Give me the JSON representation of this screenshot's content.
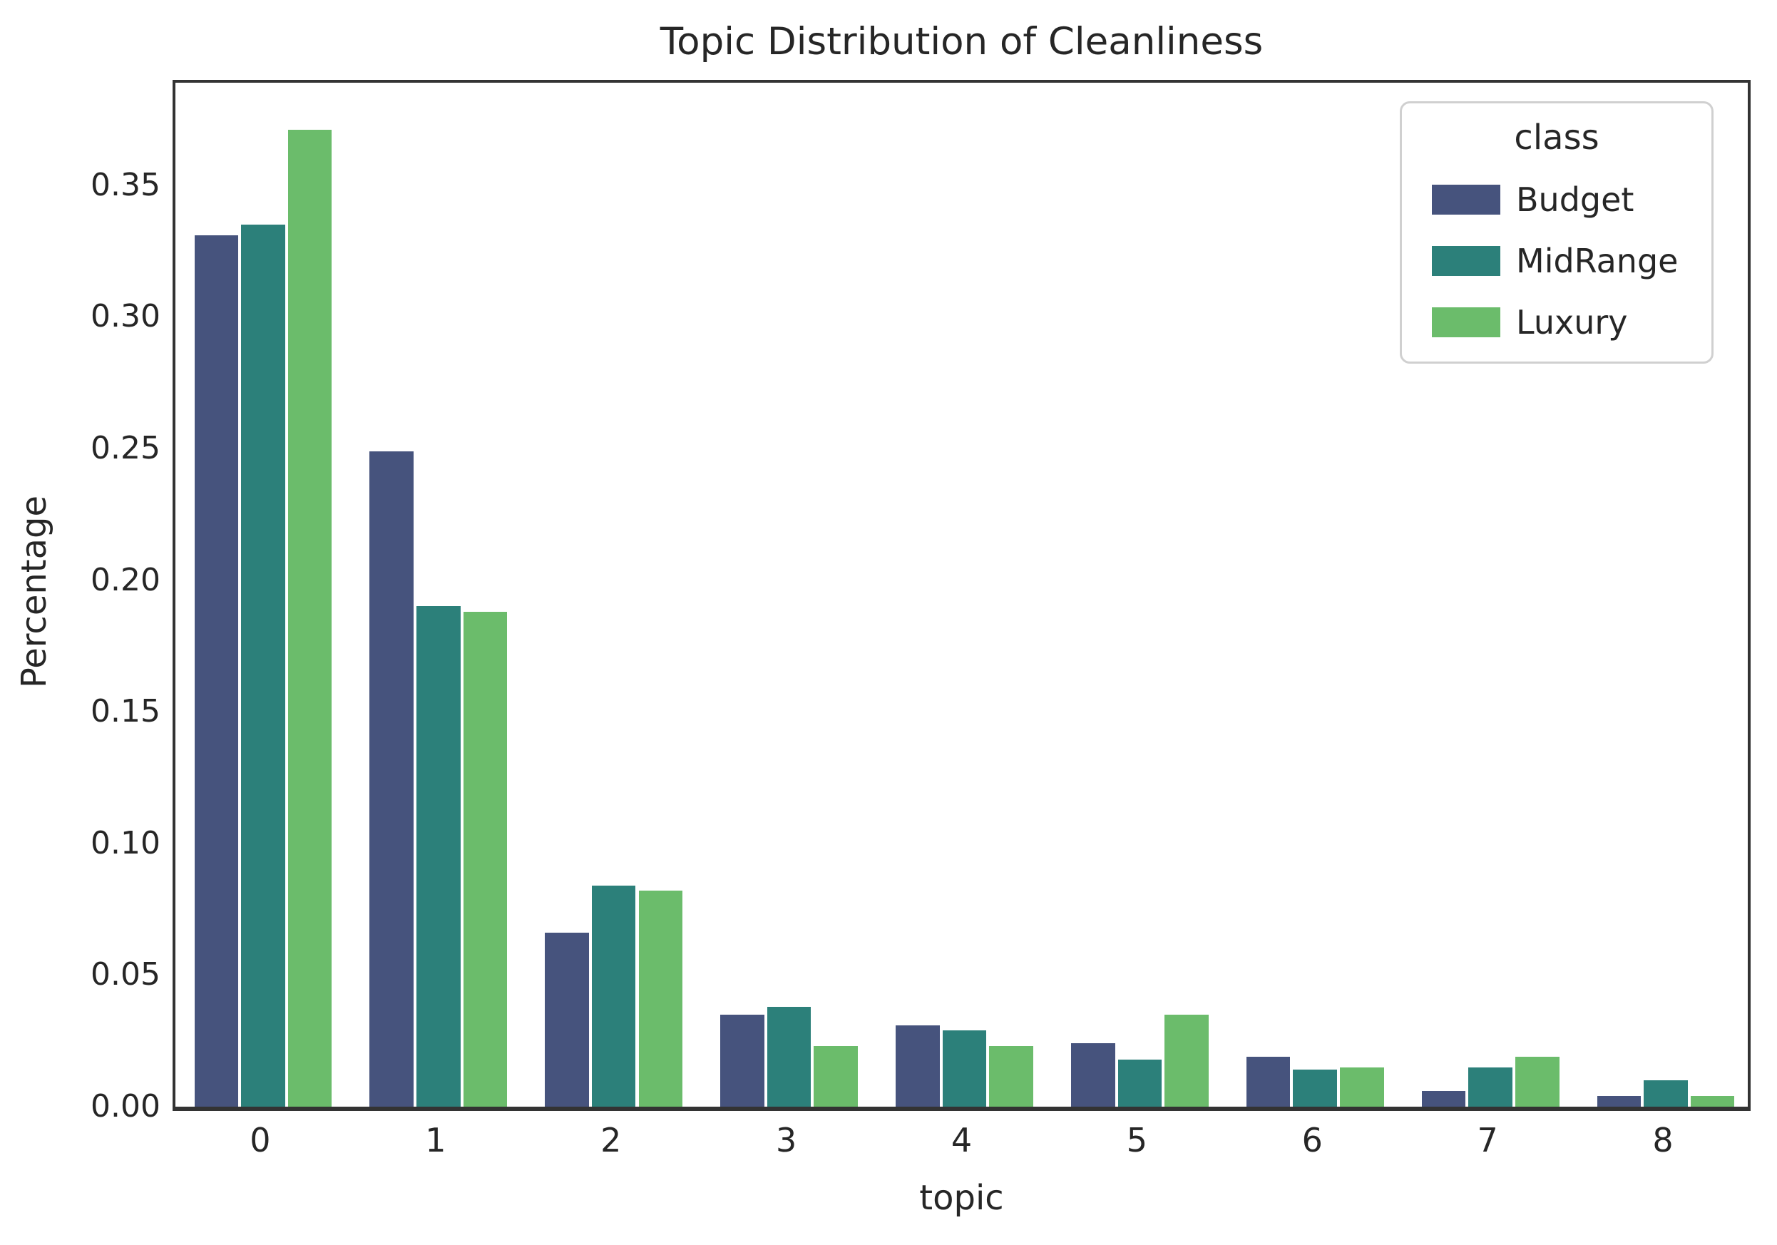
{
  "page": {
    "background": "#ffffff"
  },
  "chart_data": {
    "type": "bar",
    "title": "Topic Distribution of Cleanliness",
    "xlabel": "topic",
    "ylabel": "Percentage",
    "categories": [
      "0",
      "1",
      "2",
      "3",
      "4",
      "5",
      "6",
      "7",
      "8"
    ],
    "series": [
      {
        "name": "Budget",
        "color": "#46537D",
        "values": [
          0.331,
          0.249,
          0.066,
          0.035,
          0.031,
          0.024,
          0.019,
          0.006,
          0.004
        ]
      },
      {
        "name": "MidRange",
        "color": "#2C807A",
        "values": [
          0.335,
          0.19,
          0.084,
          0.038,
          0.029,
          0.018,
          0.014,
          0.015,
          0.01
        ]
      },
      {
        "name": "Luxury",
        "color": "#6BBC6B",
        "values": [
          0.371,
          0.188,
          0.082,
          0.023,
          0.023,
          0.035,
          0.015,
          0.019,
          0.004
        ]
      }
    ],
    "ylim": [
      0,
      0.39
    ],
    "yticks": [
      "0.00",
      "0.05",
      "0.10",
      "0.15",
      "0.20",
      "0.25",
      "0.30",
      "0.35"
    ],
    "legend": {
      "title": "class",
      "position": "upper right"
    },
    "grid": false,
    "bar_group_width_fraction": 0.8,
    "text_color": "#262626",
    "spine_color": "#333333"
  }
}
